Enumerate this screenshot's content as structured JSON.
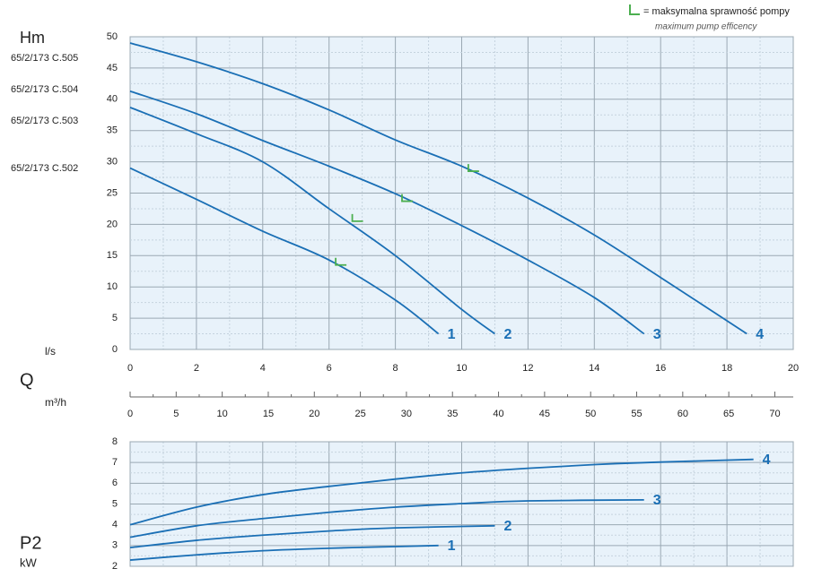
{
  "legend_note": {
    "text": "= maksymalna sprawność pompy",
    "subtext": "maximum pump efficency",
    "color": "#4caf50"
  },
  "chart_data": [
    {
      "type": "line",
      "ylabel": "Hm",
      "xlabel": "l/s",
      "x2label": "Q",
      "x2unit": "m³/h",
      "x2lim": [
        0,
        72
      ],
      "x2ticks": [
        0,
        5,
        10,
        15,
        20,
        25,
        30,
        35,
        40,
        45,
        50,
        55,
        60,
        65,
        70
      ],
      "xlim": [
        0,
        20
      ],
      "xticks": [
        0,
        2,
        4,
        6,
        8,
        10,
        12,
        14,
        16,
        18,
        20
      ],
      "ylim": [
        0,
        50
      ],
      "yticks": [
        0,
        5,
        10,
        15,
        20,
        25,
        30,
        35,
        40,
        45,
        50
      ],
      "grid": true,
      "annotations": [
        "65/2/173 C.505",
        "65/2/173 C.504",
        "65/2/173 C.503",
        "65/2/173 C.502"
      ],
      "series": [
        {
          "name": "1",
          "color": "#1a6fb5",
          "x": [
            0,
            2,
            4,
            6,
            8,
            9.3
          ],
          "values": [
            29,
            24,
            18.9,
            14.3,
            7.9,
            2.5
          ]
        },
        {
          "name": "2",
          "color": "#1a6fb5",
          "x": [
            0,
            2,
            4,
            6,
            8,
            10,
            11
          ],
          "values": [
            38.7,
            34.5,
            30,
            22.5,
            15,
            6.4,
            2.5
          ]
        },
        {
          "name": "3",
          "color": "#1a6fb5",
          "x": [
            0,
            2,
            4,
            6,
            8,
            10,
            12,
            14,
            15.5
          ],
          "values": [
            41.3,
            37.7,
            33.4,
            29.3,
            24.9,
            19.8,
            14.3,
            8.3,
            2.5
          ]
        },
        {
          "name": "4",
          "color": "#1a6fb5",
          "x": [
            0,
            2,
            4,
            6,
            8,
            10,
            12,
            14,
            16,
            18.6
          ],
          "values": [
            49,
            46,
            42.5,
            38.3,
            33.5,
            29.3,
            24.2,
            18.3,
            11.5,
            2.5
          ]
        }
      ],
      "efficiency_points": {
        "x": [
          6.2,
          6.7,
          8.2,
          10.2
        ],
        "values": [
          13.5,
          20.5,
          23.7,
          28.5
        ]
      }
    },
    {
      "type": "line",
      "ylabel": "P2",
      "yunit": "kW",
      "xlim": [
        0,
        20
      ],
      "xticks": [
        0,
        2,
        4,
        6,
        8,
        10,
        12,
        14,
        16,
        18,
        20
      ],
      "ylim": [
        2,
        8
      ],
      "yticks": [
        2,
        3,
        4,
        5,
        6,
        7,
        8
      ],
      "grid": true,
      "series": [
        {
          "name": "1",
          "color": "#1a6fb5",
          "x": [
            0,
            2,
            4,
            6,
            8,
            9.3
          ],
          "values": [
            2.3,
            2.55,
            2.75,
            2.87,
            2.95,
            3.0
          ]
        },
        {
          "name": "2",
          "color": "#1a6fb5",
          "x": [
            0,
            2,
            4,
            6,
            8,
            11
          ],
          "values": [
            2.9,
            3.25,
            3.5,
            3.7,
            3.85,
            3.95
          ]
        },
        {
          "name": "3",
          "color": "#1a6fb5",
          "x": [
            0,
            2,
            4,
            6,
            8,
            10,
            12,
            15.5
          ],
          "values": [
            3.4,
            3.95,
            4.3,
            4.6,
            4.85,
            5.02,
            5.15,
            5.2
          ]
        },
        {
          "name": "4",
          "color": "#1a6fb5",
          "x": [
            0,
            2,
            4,
            6,
            8,
            10,
            12,
            14,
            16,
            18.8
          ],
          "values": [
            4.0,
            4.85,
            5.45,
            5.85,
            6.2,
            6.5,
            6.72,
            6.9,
            7.02,
            7.15
          ]
        }
      ]
    }
  ]
}
